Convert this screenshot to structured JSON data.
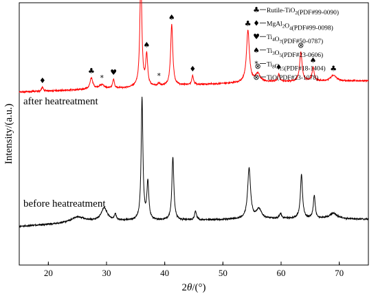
{
  "chart_data": {
    "type": "line",
    "title": "",
    "xlabel_parts": [
      "2",
      "θ",
      "/(°)"
    ],
    "ylabel": "Intensity/(a.u.)",
    "xlim": [
      15,
      75
    ],
    "xticks": [
      20,
      30,
      40,
      50,
      60,
      70
    ],
    "y_ticks_labeled": false,
    "grid": false,
    "legend_position": "top-right",
    "series": [
      {
        "label": "after heatreatment",
        "color": "#ff0000",
        "baseline": [
          [
            15,
            8.3
          ],
          [
            30,
            8.5
          ],
          [
            45,
            8.75
          ],
          [
            60,
            8.95
          ],
          [
            75,
            9.0
          ]
        ],
        "peaks": [
          {
            "x": 19.0,
            "h": 0.25,
            "w": 0.18
          },
          {
            "x": 27.4,
            "h": 0.7,
            "w": 0.3
          },
          {
            "x": 29.2,
            "h": 0.25,
            "w": 0.5
          },
          {
            "x": 31.2,
            "h": 0.55,
            "w": 0.18
          },
          {
            "x": 35.9,
            "h": 7.0,
            "w": 0.2
          },
          {
            "x": 36.9,
            "h": 1.9,
            "w": 0.2
          },
          {
            "x": 39.0,
            "h": 0.15,
            "w": 0.2
          },
          {
            "x": 41.2,
            "h": 3.8,
            "w": 0.22
          },
          {
            "x": 44.8,
            "h": 0.55,
            "w": 0.18
          },
          {
            "x": 54.3,
            "h": 3.2,
            "w": 0.3
          },
          {
            "x": 56.0,
            "h": 0.5,
            "w": 0.5
          },
          {
            "x": 59.6,
            "h": 0.45,
            "w": 0.18
          },
          {
            "x": 63.4,
            "h": 1.8,
            "w": 0.25
          },
          {
            "x": 65.5,
            "h": 0.85,
            "w": 0.22
          },
          {
            "x": 69.0,
            "h": 0.35,
            "w": 0.6
          }
        ]
      },
      {
        "label": "before heatreatment",
        "color": "#000000",
        "baseline": [
          [
            15,
            0.0
          ],
          [
            30,
            0.35
          ],
          [
            45,
            0.4
          ],
          [
            60,
            0.5
          ],
          [
            75,
            0.45
          ]
        ],
        "peaks": [
          {
            "x": 25.0,
            "h": 0.35,
            "w": 1.5
          },
          {
            "x": 29.6,
            "h": 0.8,
            "w": 0.6
          },
          {
            "x": 31.5,
            "h": 0.35,
            "w": 0.2
          },
          {
            "x": 36.1,
            "h": 7.5,
            "w": 0.18
          },
          {
            "x": 37.1,
            "h": 2.3,
            "w": 0.2
          },
          {
            "x": 41.4,
            "h": 3.9,
            "w": 0.2
          },
          {
            "x": 45.3,
            "h": 0.55,
            "w": 0.2
          },
          {
            "x": 54.5,
            "h": 3.1,
            "w": 0.3
          },
          {
            "x": 56.2,
            "h": 0.6,
            "w": 0.5
          },
          {
            "x": 59.9,
            "h": 0.3,
            "w": 0.2
          },
          {
            "x": 63.5,
            "h": 2.7,
            "w": 0.22
          },
          {
            "x": 65.7,
            "h": 1.4,
            "w": 0.2
          },
          {
            "x": 69.0,
            "h": 0.35,
            "w": 0.8
          }
        ]
      }
    ],
    "legend": [
      {
        "symbol": "♣",
        "text": "Rutile-TiO",
        "sub": "2",
        "rest": "(PDF#99-0090)"
      },
      {
        "symbol": "♦",
        "text": "MgAl",
        "sub": "2",
        "mid": "O",
        "sub2": "4",
        "rest": "(PDF#99-0098)"
      },
      {
        "symbol": "♥",
        "text": "Ti",
        "sub": "4",
        "mid": "O",
        "sub2": "7",
        "rest": "(PDF#50-0787)"
      },
      {
        "symbol": "♠",
        "text": "Ti",
        "sub": "3",
        "mid": "O",
        "sub2": "5",
        "rest": "(PDF#23-0606)"
      },
      {
        "symbol": "*",
        "text": "Ti",
        "sub": "8",
        "mid": "O",
        "sub2": "15",
        "rest": "(PDF#18-1404)"
      },
      {
        "symbol": "⊗",
        "text": "TiO(PDF#23-1078)"
      }
    ],
    "peak_markers": [
      {
        "symbol": "♦",
        "x": 19.0
      },
      {
        "symbol": "♣",
        "x": 27.4
      },
      {
        "symbol": "*",
        "x": 29.2
      },
      {
        "symbol": "♥",
        "x": 31.2
      },
      {
        "symbol": "♠",
        "x": 35.9
      },
      {
        "symbol": "♠",
        "x": 36.9
      },
      {
        "symbol": "*",
        "x": 39.0
      },
      {
        "symbol": "♠",
        "x": 41.2
      },
      {
        "symbol": "♦",
        "x": 44.8
      },
      {
        "symbol": "♣",
        "x": 54.3
      },
      {
        "symbol": "⊗",
        "x": 56.0
      },
      {
        "symbol": "♦",
        "x": 59.6
      },
      {
        "symbol": "⊗",
        "x": 63.4
      },
      {
        "symbol": "♠",
        "x": 65.5
      },
      {
        "symbol": "♣",
        "x": 69.0
      }
    ]
  }
}
